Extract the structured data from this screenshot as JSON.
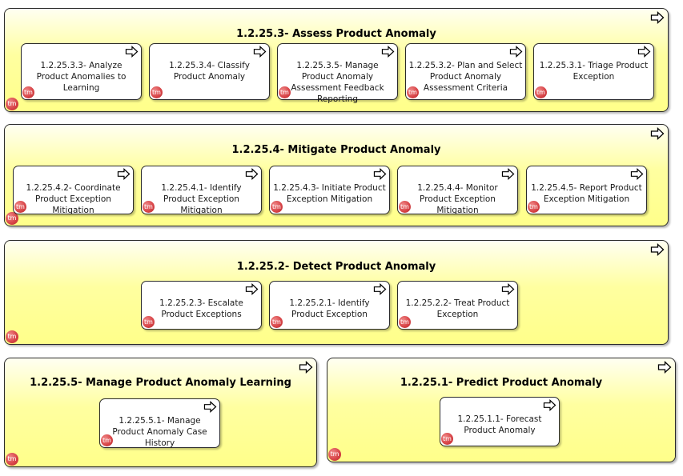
{
  "colors": {
    "group_fill": "#ffff8a",
    "card_fill": "#ffffff",
    "border": "#2b2b2b",
    "tm_badge": "#d9474a"
  },
  "icons": {
    "corner": "arrow-right-outline-icon",
    "badge": "tm-badge-icon",
    "badge_text": "tm"
  },
  "groups": [
    {
      "title": "1.2.25.3- Assess Product Anomaly",
      "cards": [
        {
          "label": "1.2.25.3.3- Analyze Product Anomalies to Learning"
        },
        {
          "label": "1.2.25.3.4- Classify Product Anomaly"
        },
        {
          "label": "1.2.25.3.5- Manage Product Anomaly Assessment Feedback Reporting"
        },
        {
          "label": "1.2.25.3.2- Plan and Select Product Anomaly Assessment Criteria"
        },
        {
          "label": "1.2.25.3.1- Triage Product Exception"
        }
      ]
    },
    {
      "title": "1.2.25.4- Mitigate Product Anomaly",
      "cards": [
        {
          "label": "1.2.25.4.2- Coordinate Product Exception Mitigation"
        },
        {
          "label": "1.2.25.4.1- Identify Product Exception Mitigation"
        },
        {
          "label": "1.2.25.4.3- Initiate Product Exception Mitigation"
        },
        {
          "label": "1.2.25.4.4- Monitor Product Exception Mitigation"
        },
        {
          "label": "1.2.25.4.5- Report Product Exception Mitigation"
        }
      ]
    },
    {
      "title": "1.2.25.2- Detect Product Anomaly",
      "cards": [
        {
          "label": "1.2.25.2.3- Escalate Product Exceptions"
        },
        {
          "label": "1.2.25.2.1- Identify Product Exception"
        },
        {
          "label": "1.2.25.2.2- Treat Product Exception"
        }
      ]
    },
    {
      "title": "1.2.25.5- Manage Product Anomaly Learning",
      "cards": [
        {
          "label": "1.2.25.5.1- Manage Product Anomaly Case History"
        }
      ]
    },
    {
      "title": "1.2.25.1- Predict Product Anomaly",
      "cards": [
        {
          "label": "1.2.25.1.1- Forecast Product Anomaly"
        }
      ]
    }
  ]
}
